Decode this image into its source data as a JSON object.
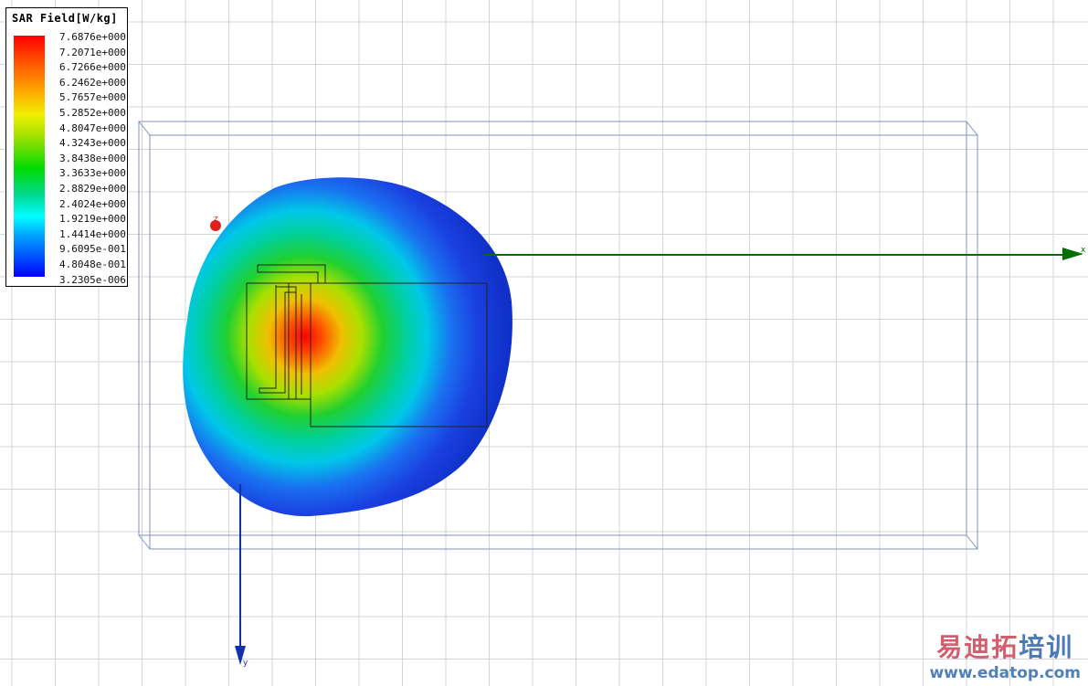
{
  "legend": {
    "title": "SAR Field[W/kg]",
    "values": [
      "7.6876e+000",
      "7.2071e+000",
      "6.7266e+000",
      "6.2462e+000",
      "5.7657e+000",
      "5.2852e+000",
      "4.8047e+000",
      "4.3243e+000",
      "3.8438e+000",
      "3.3633e+000",
      "2.8829e+000",
      "2.4024e+000",
      "1.9219e+000",
      "1.4414e+000",
      "9.6095e-001",
      "4.8048e-001",
      "3.2305e-006"
    ]
  },
  "axes": {
    "x_label": "x",
    "y_label": "y",
    "z_label": "z"
  },
  "colors": {
    "x_axis": "#007000",
    "y_axis": "#1030b0",
    "z_axis": "#e02020",
    "box": "#8090c0",
    "grid": "#d4d4d4"
  },
  "watermark": {
    "cn_red": "易迪拓",
    "cn_blue": "培训",
    "url": "www.edatop.com"
  }
}
